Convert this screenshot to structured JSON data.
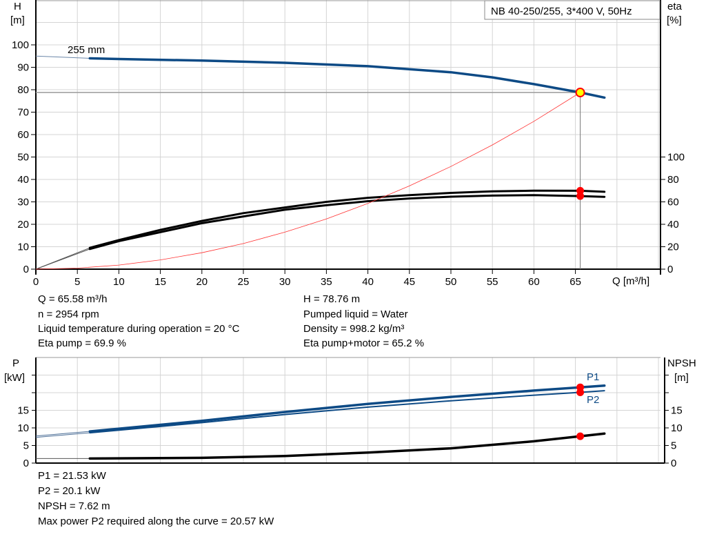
{
  "chart_data": [
    {
      "type": "line",
      "title": "NB 40-250/255, 3*400 V, 50Hz",
      "xlabel": "Q [m³/h]",
      "ylabel_left": {
        "name": "H",
        "unit": "[m]"
      },
      "ylabel_right": {
        "name": "eta",
        "unit": "[%]"
      },
      "xlim": [
        0,
        75
      ],
      "ylim_left": [
        0,
        120
      ],
      "ylim_right": [
        0,
        240
      ],
      "grid": true,
      "x_ticks": [
        "0",
        "5",
        "10",
        "15",
        "20",
        "25",
        "30",
        "35",
        "40",
        "45",
        "50",
        "55",
        "60",
        "65"
      ],
      "y_left_ticks": [
        "0",
        "10",
        "20",
        "30",
        "40",
        "50",
        "60",
        "70",
        "80",
        "90",
        "100"
      ],
      "y_right_ticks": [
        "0",
        "20",
        "40",
        "60",
        "80",
        "100"
      ],
      "curve_label": "255 mm",
      "operating_point": {
        "Q": 65.58,
        "H": 78.76,
        "eta_pump": 69.9,
        "eta_pump_motor": 65.2
      },
      "colors": {
        "head": "#0d4a85",
        "eta": "#000000",
        "system": "#ff3030",
        "point_fill": "#ffff00",
        "point_edge": "#ff0000",
        "marker": "#ff0000"
      },
      "series": [
        {
          "key": "head",
          "axis": "left",
          "x": [
            6.5,
            10,
            20,
            30,
            40,
            50,
            55,
            60,
            65.58,
            68.5
          ],
          "y": [
            94,
            93.7,
            93,
            92,
            90.5,
            87.8,
            85.5,
            82.5,
            78.76,
            76.5
          ],
          "extension": {
            "x": [
              0,
              6.5
            ],
            "y": [
              95,
              94
            ]
          }
        },
        {
          "key": "eta_pump",
          "axis": "right",
          "x": [
            6.5,
            10,
            15,
            20,
            25,
            30,
            35,
            40,
            45,
            50,
            55,
            60,
            65.58,
            68.5
          ],
          "y": [
            19,
            26,
            35,
            43,
            50,
            55,
            60,
            63.6,
            66,
            68,
            69.4,
            70,
            69.9,
            69
          ],
          "extension": {
            "x": [
              0,
              6.5
            ],
            "y": [
              0,
              19
            ]
          }
        },
        {
          "key": "eta_pump_motor",
          "axis": "right",
          "x": [
            6.5,
            10,
            15,
            20,
            25,
            30,
            35,
            40,
            45,
            50,
            55,
            60,
            65.58,
            68.5
          ],
          "y": [
            18,
            25,
            33,
            41,
            47,
            53,
            57,
            60.6,
            63,
            64.6,
            65.6,
            66,
            65.2,
            64.5
          ],
          "extension": {
            "x": [
              0,
              6.5
            ],
            "y": [
              0,
              18
            ]
          }
        },
        {
          "key": "system",
          "axis": "left",
          "x": [
            0,
            5,
            10,
            15,
            20,
            25,
            30,
            35,
            40,
            45,
            50,
            55,
            60,
            65.58
          ],
          "y": [
            0,
            0.46,
            1.83,
            4.12,
            7.32,
            11.4,
            16.5,
            22.4,
            29.3,
            37.1,
            45.8,
            55.4,
            65.9,
            78.76
          ]
        }
      ]
    },
    {
      "type": "line",
      "ylabel_left": {
        "name": "P",
        "unit": "[kW]"
      },
      "ylabel_right": {
        "name": "NPSH",
        "unit": "[m]"
      },
      "xlim": [
        0,
        75
      ],
      "ylim": [
        0,
        30
      ],
      "grid": true,
      "y_ticks": [
        "0",
        "5",
        "10",
        "15"
      ],
      "colors": {
        "power": "#0d4a85",
        "npsh": "#000000",
        "marker": "#ff0000"
      },
      "series": [
        {
          "name": "P1",
          "key": "p1",
          "x": [
            6.5,
            20,
            30,
            40,
            50,
            60,
            65.58,
            68.5
          ],
          "y": [
            9,
            12,
            14.5,
            16.8,
            18.8,
            20.6,
            21.53,
            22
          ],
          "extension": {
            "x": [
              0,
              6.5
            ],
            "y": [
              7.7,
              9
            ]
          },
          "marker": {
            "x": 65.58,
            "y": 21.53
          }
        },
        {
          "name": "P2",
          "key": "p2",
          "x": [
            6.5,
            20,
            30,
            40,
            50,
            60,
            65.58,
            68.5
          ],
          "y": [
            8.6,
            11.5,
            13.8,
            15.9,
            17.7,
            19.3,
            20.1,
            20.57
          ],
          "extension": {
            "x": [
              0,
              6.5
            ],
            "y": [
              7.3,
              8.6
            ]
          },
          "marker": {
            "x": 65.58,
            "y": 20.1
          }
        },
        {
          "key": "npsh",
          "x": [
            6.5,
            20,
            30,
            40,
            50,
            60,
            65.58,
            68.5
          ],
          "y": [
            1.3,
            1.5,
            2,
            3,
            4.2,
            6.2,
            7.62,
            8.4
          ],
          "extension": {
            "x": [
              0,
              6.5
            ],
            "y": [
              1.3,
              1.3
            ]
          },
          "marker": {
            "x": 65.58,
            "y": 7.62
          }
        }
      ]
    }
  ],
  "info_top": {
    "left": [
      "Q = 65.58 m³/h",
      "n = 2954 rpm",
      "Liquid temperature during operation = 20 °C",
      "Eta pump = 69.9 %"
    ],
    "right": [
      "H = 78.76 m",
      "Pumped liquid = Water",
      "Density = 998.2 kg/m³",
      "Eta pump+motor = 65.2 %"
    ]
  },
  "info_bottom": [
    "P1 = 21.53 kW",
    "P2 = 20.1 kW",
    "NPSH = 7.62 m",
    "Max power P2 required along the curve = 20.57 kW"
  ]
}
